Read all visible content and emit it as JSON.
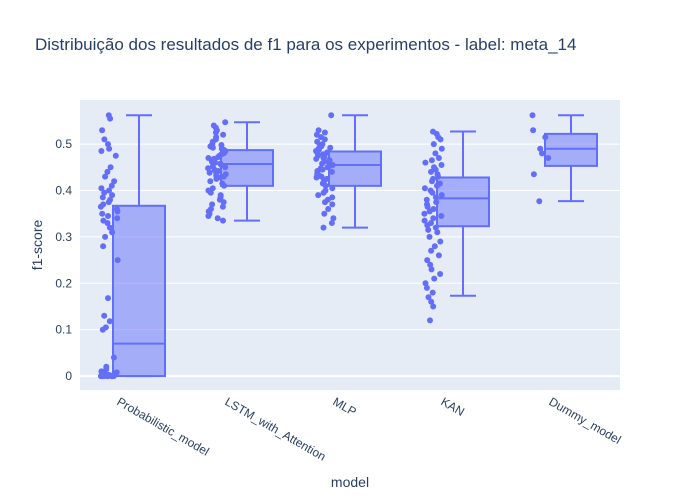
{
  "chart_data": {
    "type": "box",
    "title": "Distribuição dos resultados de f1 para os experimentos - label: meta_14",
    "xlabel": "model",
    "ylabel": "f1-score",
    "categories": [
      "Probabilistic_model",
      "LSTM_with_Attention",
      "MLP",
      "KAN",
      "Dummy_model"
    ],
    "ylim": [
      -0.03,
      0.595
    ],
    "yticks": [
      0,
      0.1,
      0.2,
      0.3,
      0.4,
      0.5
    ],
    "ytick_labels": [
      "0",
      "0.1",
      "0.2",
      "0.3",
      "0.4",
      "0.5"
    ],
    "grid": true,
    "points": "all",
    "colors": {
      "box": "#636efa",
      "fill": "rgba(99,110,250,0.5)",
      "plot_bg": "#e5ecf6",
      "grid": "#ffffff"
    },
    "boxes": [
      {
        "name": "Probabilistic_model",
        "min": 0.0,
        "q1": 0.0,
        "median": 0.07,
        "q3": 0.367,
        "max": 0.562,
        "points": [
          0.562,
          0.555,
          0.53,
          0.51,
          0.5,
          0.49,
          0.485,
          0.475,
          0.45,
          0.44,
          0.43,
          0.42,
          0.41,
          0.405,
          0.4,
          0.395,
          0.39,
          0.385,
          0.38,
          0.375,
          0.37,
          0.365,
          0.36,
          0.355,
          0.35,
          0.345,
          0.34,
          0.335,
          0.33,
          0.32,
          0.31,
          0.3,
          0.28,
          0.25,
          0.168,
          0.13,
          0.118,
          0.105,
          0.1,
          0.04,
          0.02,
          0.015,
          0.01,
          0.008,
          0.005,
          0.004,
          0.003,
          0.002,
          0.001,
          0.0,
          0.0,
          0.0,
          0.0,
          0.0,
          0.0,
          0.0,
          0.0,
          0.0,
          0.0,
          0.0
        ]
      },
      {
        "name": "LSTM_with_Attention",
        "min": 0.335,
        "q1": 0.41,
        "median": 0.457,
        "q3": 0.487,
        "max": 0.547,
        "points": [
          0.547,
          0.54,
          0.535,
          0.53,
          0.525,
          0.52,
          0.515,
          0.51,
          0.505,
          0.5,
          0.498,
          0.495,
          0.492,
          0.49,
          0.488,
          0.485,
          0.482,
          0.48,
          0.478,
          0.475,
          0.472,
          0.47,
          0.468,
          0.465,
          0.462,
          0.46,
          0.458,
          0.455,
          0.452,
          0.45,
          0.448,
          0.445,
          0.442,
          0.44,
          0.438,
          0.435,
          0.432,
          0.43,
          0.428,
          0.425,
          0.42,
          0.415,
          0.41,
          0.405,
          0.4,
          0.395,
          0.39,
          0.385,
          0.38,
          0.375,
          0.37,
          0.365,
          0.36,
          0.355,
          0.35,
          0.345,
          0.34,
          0.335
        ]
      },
      {
        "name": "MLP",
        "min": 0.32,
        "q1": 0.41,
        "median": 0.455,
        "q3": 0.484,
        "max": 0.562,
        "points": [
          0.562,
          0.53,
          0.525,
          0.52,
          0.515,
          0.51,
          0.505,
          0.5,
          0.498,
          0.495,
          0.492,
          0.49,
          0.488,
          0.485,
          0.482,
          0.48,
          0.478,
          0.475,
          0.472,
          0.47,
          0.468,
          0.465,
          0.462,
          0.46,
          0.458,
          0.455,
          0.452,
          0.45,
          0.448,
          0.445,
          0.442,
          0.44,
          0.438,
          0.435,
          0.432,
          0.43,
          0.428,
          0.425,
          0.42,
          0.415,
          0.41,
          0.405,
          0.4,
          0.395,
          0.39,
          0.385,
          0.38,
          0.375,
          0.37,
          0.36,
          0.35,
          0.34,
          0.33,
          0.32
        ]
      },
      {
        "name": "KAN",
        "min": 0.173,
        "q1": 0.323,
        "median": 0.383,
        "q3": 0.428,
        "max": 0.527,
        "points": [
          0.527,
          0.522,
          0.515,
          0.51,
          0.5,
          0.49,
          0.48,
          0.47,
          0.465,
          0.46,
          0.455,
          0.45,
          0.445,
          0.44,
          0.435,
          0.43,
          0.425,
          0.42,
          0.415,
          0.41,
          0.405,
          0.4,
          0.395,
          0.39,
          0.385,
          0.38,
          0.375,
          0.37,
          0.365,
          0.36,
          0.355,
          0.35,
          0.345,
          0.34,
          0.335,
          0.33,
          0.325,
          0.32,
          0.315,
          0.31,
          0.3,
          0.29,
          0.28,
          0.27,
          0.26,
          0.25,
          0.24,
          0.23,
          0.22,
          0.21,
          0.2,
          0.19,
          0.18,
          0.17,
          0.16,
          0.15,
          0.12
        ]
      },
      {
        "name": "Dummy_model",
        "min": 0.377,
        "q1": 0.453,
        "median": 0.49,
        "q3": 0.522,
        "max": 0.562,
        "points": [
          0.562,
          0.53,
          0.515,
          0.49,
          0.48,
          0.47,
          0.435,
          0.377
        ]
      }
    ]
  }
}
